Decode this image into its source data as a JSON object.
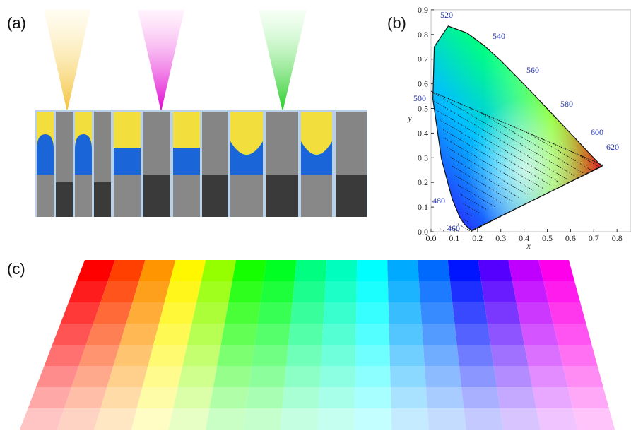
{
  "panels": {
    "a": {
      "label": "(a)"
    },
    "b": {
      "label": "(b)",
      "x_axis_label": "x",
      "y_axis_label": "y",
      "x_ticks": [
        "0.0",
        "0.1",
        "0.2",
        "0.3",
        "0.4",
        "0.5",
        "0.6",
        "0.7",
        "0.8"
      ],
      "y_ticks": [
        "0.0",
        "0.1",
        "0.2",
        "0.3",
        "0.4",
        "0.5",
        "0.6",
        "0.7",
        "0.8",
        "0.9"
      ],
      "wavelengths": [
        "460",
        "480",
        "500",
        "520",
        "540",
        "560",
        "580",
        "600",
        "620"
      ]
    },
    "c": {
      "label": "(c)"
    }
  }
}
